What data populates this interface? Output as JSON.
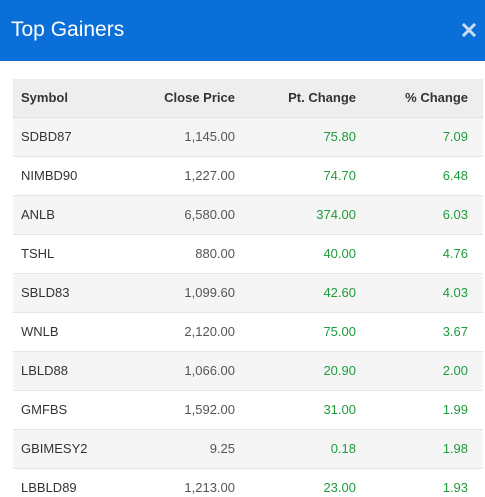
{
  "modal": {
    "title": "Top Gainers",
    "close_icon": "close-icon"
  },
  "colors": {
    "header_bg": "#0a6fd8",
    "gain_green": "#1e9c3c"
  },
  "table": {
    "headers": {
      "symbol": "Symbol",
      "close_price": "Close Price",
      "pt_change": "Pt. Change",
      "pct_change": "% Change"
    },
    "rows": [
      {
        "symbol": "SDBD87",
        "close_price": "1,145.00",
        "pt_change": "75.80",
        "pct_change": "7.09"
      },
      {
        "symbol": "NIMBD90",
        "close_price": "1,227.00",
        "pt_change": "74.70",
        "pct_change": "6.48"
      },
      {
        "symbol": "ANLB",
        "close_price": "6,580.00",
        "pt_change": "374.00",
        "pct_change": "6.03"
      },
      {
        "symbol": "TSHL",
        "close_price": "880.00",
        "pt_change": "40.00",
        "pct_change": "4.76"
      },
      {
        "symbol": "SBLD83",
        "close_price": "1,099.60",
        "pt_change": "42.60",
        "pct_change": "4.03"
      },
      {
        "symbol": "WNLB",
        "close_price": "2,120.00",
        "pt_change": "75.00",
        "pct_change": "3.67"
      },
      {
        "symbol": "LBLD88",
        "close_price": "1,066.00",
        "pt_change": "20.90",
        "pct_change": "2.00"
      },
      {
        "symbol": "GMFBS",
        "close_price": "1,592.00",
        "pt_change": "31.00",
        "pct_change": "1.99"
      },
      {
        "symbol": "GBIMESY2",
        "close_price": "9.25",
        "pt_change": "0.18",
        "pct_change": "1.98"
      },
      {
        "symbol": "LBBLD89",
        "close_price": "1,213.00",
        "pt_change": "23.00",
        "pct_change": "1.93"
      }
    ]
  }
}
